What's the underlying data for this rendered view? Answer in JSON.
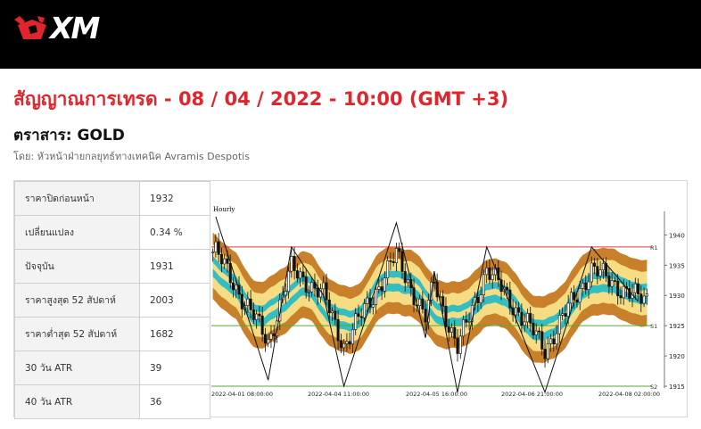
{
  "brand": {
    "name": "XM"
  },
  "page": {
    "title": "สัญญาณการเทรด - 08 / 04 / 2022 - 10:00 (GMT +3)",
    "instrument": "ตราสาร: GOLD",
    "author": "โดย: หัวหน้าฝ่ายกลยุทธ์ทางเทคนิค Avramis Despotis"
  },
  "stats": [
    {
      "label": "ราคาปิดก่อนหน้า",
      "value": "1932"
    },
    {
      "label": "เปลี่ยนแปลง",
      "value": "0.34 %"
    },
    {
      "label": "ปัจจุบัน",
      "value": "1931"
    },
    {
      "label": "ราคาสูงสุด 52 สัปดาห์",
      "value": "2003"
    },
    {
      "label": "ราคาต่ำสุด 52 สัปดาห์",
      "value": "1682"
    },
    {
      "label": "30 วัน ATR",
      "value": "39"
    },
    {
      "label": "40 วัน ATR",
      "value": "36"
    }
  ],
  "chart_data": {
    "type": "candlestick",
    "timeframe_label": "Hourly",
    "ylim": [
      1915,
      1943
    ],
    "y_ticks": [
      1915,
      1920,
      1925,
      1930,
      1935,
      1940
    ],
    "x_ticks": [
      "2022-04-01 08:00:00",
      "2022-04-04 11:00:00",
      "2022-04-05 16:00:00",
      "2022-04-06 21:00:00",
      "2022-04-08 02:00:00"
    ],
    "levels": [
      {
        "name": "R1",
        "value": 1938,
        "color": "#e23b3b"
      },
      {
        "name": "S1",
        "value": 1925,
        "color": "#58a832"
      },
      {
        "name": "S2",
        "value": 1915,
        "color": "#58a832"
      }
    ],
    "colors": {
      "up": "#ffffff",
      "down": "#111111",
      "outer_band": "#c8802a",
      "mid_band": "#f6dc82",
      "inner_band": "#1fbac9",
      "zigzag": "#111111"
    },
    "zigzag": [
      [
        1,
        1943
      ],
      [
        19,
        1916
      ],
      [
        27,
        1938
      ],
      [
        38,
        1930
      ],
      [
        45,
        1915
      ],
      [
        63,
        1942
      ],
      [
        73,
        1923
      ],
      [
        76,
        1934
      ],
      [
        84,
        1914
      ],
      [
        94,
        1938
      ],
      [
        100,
        1931
      ],
      [
        114,
        1914
      ],
      [
        130,
        1938
      ],
      [
        146,
        1929
      ]
    ]
  }
}
